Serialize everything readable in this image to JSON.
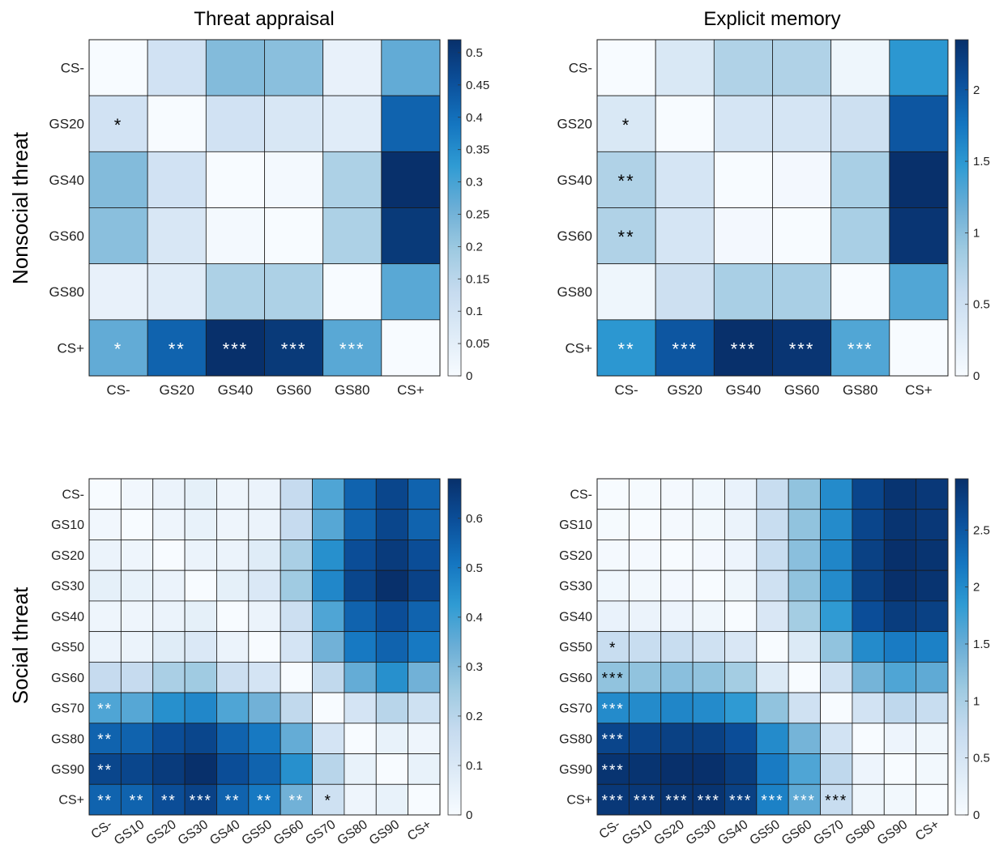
{
  "column_titles": [
    "Threat appraisal",
    "Explicit memory"
  ],
  "row_titles": [
    "Nonsocial threat",
    "Social threat"
  ],
  "colors": {
    "low": "#f7fbff",
    "high": "#08306b",
    "star_dark": "#000000",
    "star_light": "#ffffff"
  },
  "chart_data": [
    {
      "type": "heatmap",
      "title": "Threat appraisal",
      "row_title": "Nonsocial threat",
      "labels": [
        "CS-",
        "GS20",
        "GS40",
        "GS60",
        "GS80",
        "CS+"
      ],
      "colorbar": {
        "range": [
          0,
          0.52
        ],
        "ticks": [
          "0",
          "0.05",
          "0.1",
          "0.15",
          "0.2",
          "0.25",
          "0.3",
          "0.35",
          "0.4",
          "0.45",
          "0.5"
        ]
      },
      "values": [
        [
          0.0,
          0.1,
          0.23,
          0.22,
          0.04,
          0.27
        ],
        [
          0.1,
          0.0,
          0.1,
          0.08,
          0.06,
          0.42
        ],
        [
          0.23,
          0.1,
          0.0,
          0.01,
          0.17,
          0.52
        ],
        [
          0.22,
          0.08,
          0.01,
          0.0,
          0.17,
          0.5
        ],
        [
          0.04,
          0.06,
          0.17,
          0.17,
          0.0,
          0.28
        ],
        [
          0.27,
          0.42,
          0.52,
          0.5,
          0.28,
          0.0
        ]
      ],
      "stars": [
        [
          "",
          "",
          "",
          "",
          "",
          ""
        ],
        [
          "*",
          "",
          "",
          "",
          "",
          ""
        ],
        [
          "",
          "",
          "",
          "",
          "",
          ""
        ],
        [
          "",
          "",
          "",
          "",
          "",
          ""
        ],
        [
          "",
          "",
          "",
          "",
          "",
          ""
        ],
        [
          "*",
          "**",
          "***",
          "***",
          "***",
          ""
        ]
      ]
    },
    {
      "type": "heatmap",
      "title": "Explicit memory",
      "row_title": "Nonsocial threat",
      "labels": [
        "CS-",
        "GS20",
        "GS40",
        "GS60",
        "GS80",
        "CS+"
      ],
      "colorbar": {
        "range": [
          0,
          2.35
        ],
        "ticks": [
          "0",
          "0.5",
          "1",
          "1.5",
          "2"
        ]
      },
      "values": [
        [
          0.0,
          0.35,
          0.75,
          0.75,
          0.1,
          1.5
        ],
        [
          0.35,
          0.0,
          0.4,
          0.4,
          0.5,
          2.0
        ],
        [
          0.75,
          0.4,
          0.0,
          0.05,
          0.8,
          2.35
        ],
        [
          0.75,
          0.4,
          0.05,
          0.0,
          0.8,
          2.3
        ],
        [
          0.1,
          0.5,
          0.8,
          0.8,
          0.0,
          1.3
        ],
        [
          1.5,
          2.0,
          2.35,
          2.3,
          1.3,
          0.0
        ]
      ],
      "stars": [
        [
          "",
          "",
          "",
          "",
          "",
          ""
        ],
        [
          "*",
          "",
          "",
          "",
          "",
          ""
        ],
        [
          "**",
          "",
          "",
          "",
          "",
          ""
        ],
        [
          "**",
          "",
          "",
          "",
          "",
          ""
        ],
        [
          "",
          "",
          "",
          "",
          "",
          ""
        ],
        [
          "**",
          "***",
          "***",
          "***",
          "***",
          ""
        ]
      ]
    },
    {
      "type": "heatmap",
      "title": "",
      "row_title": "Social threat",
      "labels": [
        "CS-",
        "GS10",
        "GS20",
        "GS30",
        "GS40",
        "GS50",
        "GS60",
        "GS70",
        "GS80",
        "GS90",
        "CS+"
      ],
      "colorbar": {
        "range": [
          0,
          0.68
        ],
        "ticks": [
          "0",
          "0.1",
          "0.2",
          "0.3",
          "0.4",
          "0.5",
          "0.6"
        ]
      },
      "values": [
        [
          0.0,
          0.02,
          0.04,
          0.06,
          0.03,
          0.04,
          0.17,
          0.38,
          0.55,
          0.62,
          0.55
        ],
        [
          0.02,
          0.0,
          0.03,
          0.05,
          0.03,
          0.04,
          0.17,
          0.37,
          0.55,
          0.62,
          0.55
        ],
        [
          0.04,
          0.03,
          0.0,
          0.04,
          0.04,
          0.08,
          0.23,
          0.45,
          0.6,
          0.65,
          0.6
        ],
        [
          0.06,
          0.05,
          0.04,
          0.0,
          0.06,
          0.1,
          0.25,
          0.47,
          0.62,
          0.68,
          0.63
        ],
        [
          0.03,
          0.03,
          0.04,
          0.06,
          0.0,
          0.04,
          0.15,
          0.38,
          0.55,
          0.6,
          0.55
        ],
        [
          0.04,
          0.04,
          0.08,
          0.1,
          0.04,
          0.0,
          0.12,
          0.33,
          0.5,
          0.55,
          0.5
        ],
        [
          0.17,
          0.17,
          0.23,
          0.25,
          0.15,
          0.12,
          0.0,
          0.18,
          0.35,
          0.45,
          0.33
        ],
        [
          0.38,
          0.37,
          0.45,
          0.47,
          0.38,
          0.33,
          0.18,
          0.0,
          0.12,
          0.2,
          0.14
        ],
        [
          0.55,
          0.55,
          0.6,
          0.62,
          0.55,
          0.5,
          0.35,
          0.12,
          0.0,
          0.05,
          0.03
        ],
        [
          0.62,
          0.62,
          0.65,
          0.68,
          0.6,
          0.55,
          0.45,
          0.2,
          0.05,
          0.0,
          0.05
        ],
        [
          0.55,
          0.55,
          0.6,
          0.63,
          0.55,
          0.5,
          0.33,
          0.14,
          0.03,
          0.05,
          0.0
        ]
      ],
      "stars": [
        [
          "",
          "",
          "",
          "",
          "",
          "",
          "",
          "",
          "",
          "",
          ""
        ],
        [
          "",
          "",
          "",
          "",
          "",
          "",
          "",
          "",
          "",
          "",
          ""
        ],
        [
          "",
          "",
          "",
          "",
          "",
          "",
          "",
          "",
          "",
          "",
          ""
        ],
        [
          "",
          "",
          "",
          "",
          "",
          "",
          "",
          "",
          "",
          "",
          ""
        ],
        [
          "",
          "",
          "",
          "",
          "",
          "",
          "",
          "",
          "",
          "",
          ""
        ],
        [
          "",
          "",
          "",
          "",
          "",
          "",
          "",
          "",
          "",
          "",
          ""
        ],
        [
          "",
          "",
          "",
          "",
          "",
          "",
          "",
          "",
          "",
          "",
          ""
        ],
        [
          "**",
          "",
          "",
          "",
          "",
          "",
          "",
          "",
          "",
          "",
          ""
        ],
        [
          "**",
          "",
          "",
          "",
          "",
          "",
          "",
          "",
          "",
          "",
          ""
        ],
        [
          "**",
          "",
          "",
          "",
          "",
          "",
          "",
          "",
          "",
          "",
          ""
        ],
        [
          "**",
          "**",
          "**",
          "***",
          "**",
          "**",
          "**",
          "*",
          "",
          "",
          ""
        ]
      ]
    },
    {
      "type": "heatmap",
      "title": "",
      "row_title": "Social threat",
      "labels": [
        "CS-",
        "GS10",
        "GS20",
        "GS30",
        "GS40",
        "GS50",
        "GS60",
        "GS70",
        "GS80",
        "GS90",
        "CS+"
      ],
      "colorbar": {
        "range": [
          0,
          2.95
        ],
        "ticks": [
          "0",
          "0.5",
          "1",
          "1.5",
          "2",
          "2.5"
        ]
      },
      "values": [
        [
          0.0,
          0.03,
          0.05,
          0.1,
          0.2,
          0.7,
          1.2,
          2.0,
          2.7,
          2.9,
          2.85
        ],
        [
          0.03,
          0.0,
          0.04,
          0.08,
          0.18,
          0.7,
          1.2,
          2.0,
          2.7,
          2.9,
          2.85
        ],
        [
          0.05,
          0.04,
          0.0,
          0.06,
          0.15,
          0.7,
          1.25,
          2.05,
          2.75,
          2.95,
          2.9
        ],
        [
          0.1,
          0.08,
          0.06,
          0.0,
          0.12,
          0.6,
          1.2,
          2.0,
          2.75,
          2.95,
          2.9
        ],
        [
          0.2,
          0.18,
          0.15,
          0.12,
          0.0,
          0.45,
          1.05,
          1.85,
          2.6,
          2.8,
          2.75
        ],
        [
          0.7,
          0.7,
          0.7,
          0.6,
          0.45,
          0.0,
          0.4,
          1.2,
          2.0,
          2.15,
          2.1
        ],
        [
          1.2,
          1.2,
          1.25,
          1.2,
          1.05,
          0.4,
          0.0,
          0.6,
          1.4,
          1.65,
          1.55
        ],
        [
          2.0,
          2.0,
          2.05,
          2.0,
          1.85,
          1.2,
          0.6,
          0.0,
          0.55,
          0.8,
          0.7
        ],
        [
          2.7,
          2.7,
          2.75,
          2.75,
          2.6,
          2.0,
          1.4,
          0.55,
          0.0,
          0.15,
          0.12
        ],
        [
          2.9,
          2.9,
          2.95,
          2.95,
          2.8,
          2.15,
          1.65,
          0.8,
          0.15,
          0.0,
          0.08
        ],
        [
          2.85,
          2.85,
          2.9,
          2.9,
          2.75,
          2.1,
          1.55,
          0.7,
          0.12,
          0.08,
          0.0
        ]
      ],
      "stars": [
        [
          "",
          "",
          "",
          "",
          "",
          "",
          "",
          "",
          "",
          "",
          ""
        ],
        [
          "",
          "",
          "",
          "",
          "",
          "",
          "",
          "",
          "",
          "",
          ""
        ],
        [
          "",
          "",
          "",
          "",
          "",
          "",
          "",
          "",
          "",
          "",
          ""
        ],
        [
          "",
          "",
          "",
          "",
          "",
          "",
          "",
          "",
          "",
          "",
          ""
        ],
        [
          "",
          "",
          "",
          "",
          "",
          "",
          "",
          "",
          "",
          "",
          ""
        ],
        [
          "*",
          "",
          "",
          "",
          "",
          "",
          "",
          "",
          "",
          "",
          ""
        ],
        [
          "***",
          "",
          "",
          "",
          "",
          "",
          "",
          "",
          "",
          "",
          ""
        ],
        [
          "***",
          "",
          "",
          "",
          "",
          "",
          "",
          "",
          "",
          "",
          ""
        ],
        [
          "***",
          "",
          "",
          "",
          "",
          "",
          "",
          "",
          "",
          "",
          ""
        ],
        [
          "***",
          "",
          "",
          "",
          "",
          "",
          "",
          "",
          "",
          "",
          ""
        ],
        [
          "***",
          "***",
          "***",
          "***",
          "***",
          "***",
          "***",
          "***",
          "",
          "",
          ""
        ]
      ]
    }
  ]
}
